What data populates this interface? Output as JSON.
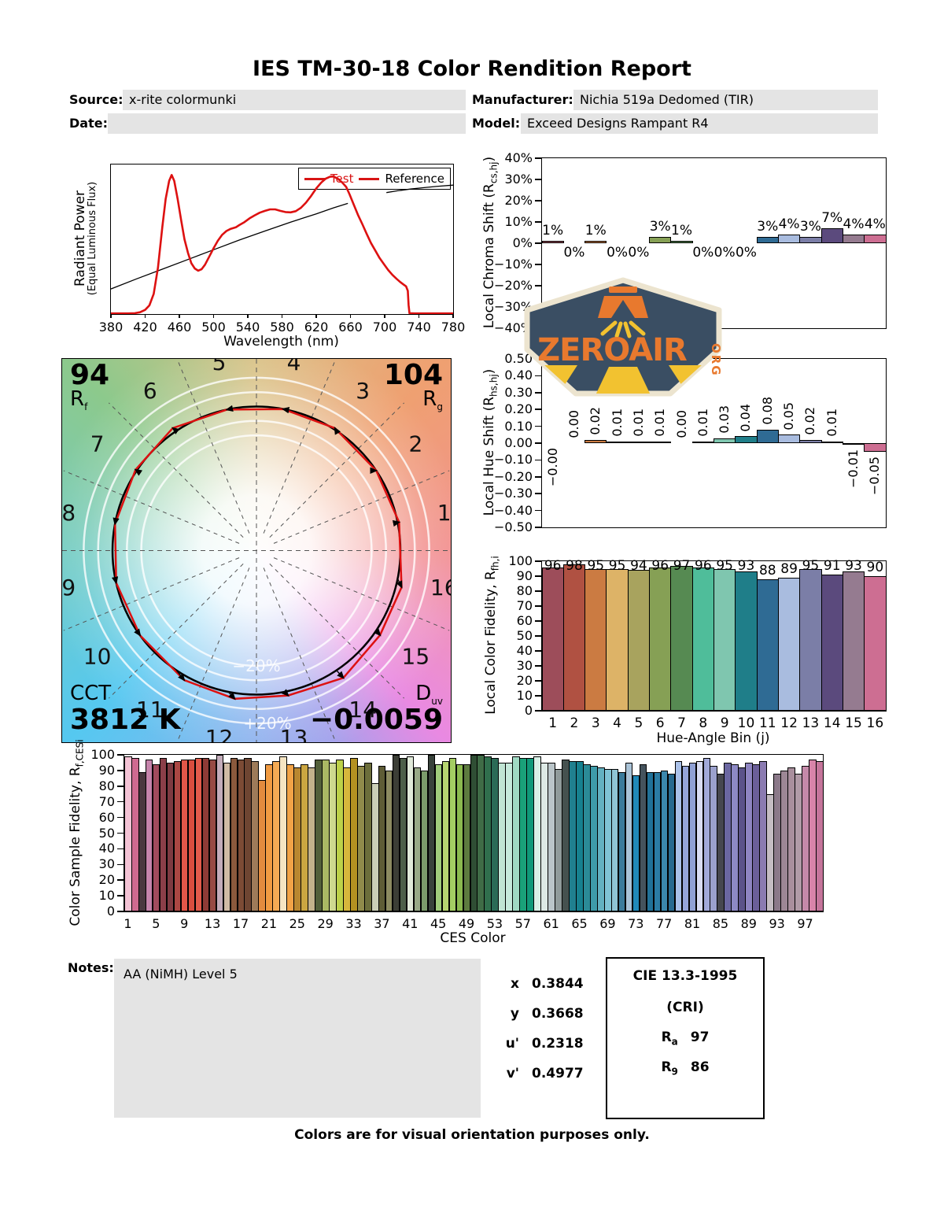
{
  "title": "IES TM-30-18 Color Rendition Report",
  "header": {
    "source_label": "Source:",
    "source_value": "x-rite colormunki",
    "manufacturer_label": "Manufacturer:",
    "manufacturer_value": "Nichia 519a Dedomed (TIR)",
    "date_label": "Date:",
    "date_value": "",
    "model_label": "Model:",
    "model_value": "Exceed Designs Rampant R4"
  },
  "logo": {
    "brand": "ZEROAIR",
    "tld": "ORG",
    "bg": "#3a4e63",
    "accent": "#e8792e",
    "ray": "#f2c230",
    "border": "#ece4cf"
  },
  "colors": {
    "test_red": "#dd1111",
    "reference_black": "#000000",
    "box_gray": "#e4e4e4"
  },
  "chart_data": {
    "bin_colors": [
      "#9d4d5a",
      "#b05142",
      "#cb7b42",
      "#ddb367",
      "#a8a35e",
      "#86a055",
      "#568a52",
      "#4fbd9a",
      "#7fc6af",
      "#1f7e89",
      "#2f6b94",
      "#a9bcdf",
      "#7b7ea7",
      "#5b4a7d",
      "#957b90",
      "#cd6e92"
    ],
    "spd": {
      "type": "line",
      "xlabel": "Wavelength (nm)",
      "ylabel": "Radiant Power",
      "ylabel2": "(Equal Luminous Flux)",
      "x_ticks": [
        "380",
        "420",
        "460",
        "500",
        "540",
        "580",
        "620",
        "660",
        "700",
        "740",
        "780"
      ],
      "xlim": [
        380,
        780
      ],
      "legend": [
        {
          "label": "Test",
          "label_color": "#d81414",
          "line_color": "#d81414"
        },
        {
          "label": "Reference",
          "label_color": "#000000",
          "line_color": "#d81414"
        }
      ],
      "test_series": [
        [
          380,
          0.004
        ],
        [
          400,
          0.004
        ],
        [
          408,
          0.006
        ],
        [
          414,
          0.012
        ],
        [
          420,
          0.028
        ],
        [
          425,
          0.058
        ],
        [
          430,
          0.135
        ],
        [
          435,
          0.31
        ],
        [
          440,
          0.58
        ],
        [
          444,
          0.77
        ],
        [
          448,
          0.89
        ],
        [
          451,
          0.93
        ],
        [
          454,
          0.89
        ],
        [
          458,
          0.77
        ],
        [
          462,
          0.63
        ],
        [
          466,
          0.5
        ],
        [
          470,
          0.41
        ],
        [
          474,
          0.34
        ],
        [
          478,
          0.305
        ],
        [
          482,
          0.29
        ],
        [
          486,
          0.3
        ],
        [
          490,
          0.33
        ],
        [
          495,
          0.385
        ],
        [
          500,
          0.44
        ],
        [
          505,
          0.49
        ],
        [
          510,
          0.53
        ],
        [
          515,
          0.555
        ],
        [
          520,
          0.57
        ],
        [
          526,
          0.58
        ],
        [
          530,
          0.595
        ],
        [
          536,
          0.615
        ],
        [
          542,
          0.64
        ],
        [
          548,
          0.66
        ],
        [
          554,
          0.678
        ],
        [
          560,
          0.69
        ],
        [
          566,
          0.7
        ],
        [
          572,
          0.7
        ],
        [
          578,
          0.69
        ],
        [
          584,
          0.682
        ],
        [
          590,
          0.68
        ],
        [
          596,
          0.688
        ],
        [
          602,
          0.71
        ],
        [
          608,
          0.745
        ],
        [
          614,
          0.79
        ],
        [
          620,
          0.84
        ],
        [
          626,
          0.88
        ],
        [
          631,
          0.905
        ],
        [
          636,
          0.918
        ],
        [
          640,
          0.92
        ],
        [
          645,
          0.906
        ],
        [
          650,
          0.882
        ],
        [
          655,
          0.85
        ],
        [
          659,
          0.8
        ],
        [
          664,
          0.73
        ],
        [
          669,
          0.66
        ],
        [
          674,
          0.6
        ],
        [
          679,
          0.535
        ],
        [
          684,
          0.475
        ],
        [
          689,
          0.425
        ],
        [
          694,
          0.375
        ],
        [
          699,
          0.335
        ],
        [
          704,
          0.295
        ],
        [
          709,
          0.262
        ],
        [
          714,
          0.235
        ],
        [
          718,
          0.215
        ],
        [
          722,
          0.198
        ],
        [
          725,
          0.185
        ],
        [
          727,
          0.155
        ],
        [
          728,
          0.06
        ],
        [
          729,
          0.006
        ],
        [
          735,
          0.004
        ],
        [
          780,
          0.004
        ]
      ],
      "reference_segments": [
        [
          [
            380,
            0.168
          ],
          [
            410,
            0.235
          ],
          [
            440,
            0.3
          ],
          [
            470,
            0.365
          ],
          [
            500,
            0.43
          ],
          [
            530,
            0.495
          ],
          [
            560,
            0.555
          ],
          [
            590,
            0.615
          ],
          [
            620,
            0.67
          ],
          [
            640,
            0.71
          ],
          [
            657,
            0.74
          ]
        ],
        [
          [
            702,
            0.812
          ],
          [
            715,
            0.824
          ],
          [
            730,
            0.836
          ],
          [
            745,
            0.845
          ],
          [
            760,
            0.853
          ],
          [
            780,
            0.862
          ]
        ]
      ]
    },
    "chroma_shift": {
      "type": "bar",
      "ylabel_pre": "Local Chroma Shift (R",
      "ylabel_sub": "cs,hj",
      "ylabel_post": ")",
      "ylim": [
        -40,
        40
      ],
      "y_ticks": [
        "40%",
        "30%",
        "20%",
        "10%",
        "0%",
        "−10%",
        "−20%",
        "−30%",
        "−40%"
      ],
      "categories": [
        1,
        2,
        3,
        4,
        5,
        6,
        7,
        8,
        9,
        10,
        11,
        12,
        13,
        14,
        15,
        16
      ],
      "values": [
        1,
        0,
        1,
        0,
        0,
        3,
        1,
        0,
        0,
        0,
        3,
        4,
        3,
        7,
        4,
        4
      ],
      "labels": [
        "1%",
        "0%",
        "1%",
        "0%",
        "0%",
        "3%",
        "1%",
        "0%",
        "0%",
        "0%",
        "3%",
        "4%",
        "3%",
        "7%",
        "4%",
        "4%"
      ]
    },
    "hue_shift": {
      "type": "bar",
      "ylabel_pre": "Local Hue Shift (R",
      "ylabel_sub": "hs,hj",
      "ylabel_post": ")",
      "ylim": [
        -0.5,
        0.5
      ],
      "y_ticks": [
        "0.50",
        "0.40",
        "0.30",
        "0.20",
        "0.10",
        "0.00",
        "−0.10",
        "−0.20",
        "−0.30",
        "−0.40",
        "−0.50"
      ],
      "categories": [
        1,
        2,
        3,
        4,
        5,
        6,
        7,
        8,
        9,
        10,
        11,
        12,
        13,
        14,
        15,
        16
      ],
      "values": [
        0,
        0,
        0.02,
        0.01,
        0.01,
        0.01,
        0,
        0.01,
        0.03,
        0.04,
        0.08,
        0.05,
        0.02,
        0.01,
        -0.01,
        -0.05
      ],
      "labels": [
        "−0.00",
        "0.00",
        "0.02",
        "0.01",
        "0.01",
        "0.01",
        "0.00",
        "0.01",
        "0.03",
        "0.04",
        "0.08",
        "0.05",
        "0.02",
        "0.01",
        "−0.01",
        "−0.05"
      ]
    },
    "local_fidelity": {
      "type": "bar",
      "ylabel_pre": "Local Color Fidelity, R",
      "ylabel_sub": "fh,i",
      "xlabel": "Hue-Angle Bin (j)",
      "ylim": [
        0,
        100
      ],
      "y_ticks": [
        "100",
        "90",
        "80",
        "70",
        "60",
        "50",
        "40",
        "30",
        "20",
        "10",
        "0"
      ],
      "categories": [
        "1",
        "2",
        "3",
        "4",
        "5",
        "6",
        "7",
        "8",
        "9",
        "10",
        "11",
        "12",
        "13",
        "14",
        "15",
        "16"
      ],
      "values": [
        96,
        98,
        95,
        95,
        94,
        96,
        97,
        96,
        95,
        93,
        88,
        89,
        95,
        91,
        93,
        90
      ]
    },
    "ces_fidelity": {
      "type": "bar",
      "ylabel_pre": "Color Sample Fidelity, R",
      "ylabel_sub": "f,CESi",
      "xlabel": "CES Color",
      "ylim": [
        0,
        100
      ],
      "y_ticks": [
        "100",
        "90",
        "80",
        "70",
        "60",
        "50",
        "40",
        "30",
        "20",
        "10",
        "0"
      ],
      "x_ticks": [
        "1",
        "5",
        "9",
        "13",
        "17",
        "21",
        "25",
        "29",
        "33",
        "37",
        "41",
        "45",
        "49",
        "53",
        "57",
        "61",
        "65",
        "69",
        "73",
        "77",
        "81",
        "85",
        "89",
        "93",
        "97"
      ],
      "values": [
        99,
        98,
        89,
        97,
        94,
        98,
        95,
        96,
        97,
        97,
        98,
        98,
        97,
        100,
        95,
        98,
        97,
        98,
        96,
        84,
        94,
        96,
        99,
        94,
        92,
        94,
        92,
        97,
        97,
        95,
        97,
        92,
        98,
        93,
        95,
        82,
        93,
        90,
        100,
        98,
        99,
        92,
        90,
        100,
        94,
        96,
        98,
        94,
        94,
        100,
        100,
        99,
        98,
        95,
        95,
        99,
        98,
        98,
        99,
        95,
        95,
        91,
        97,
        96,
        96,
        94,
        93,
        92,
        91,
        91,
        89,
        95,
        87,
        94,
        89,
        89,
        90,
        88,
        96,
        93,
        95,
        96,
        98,
        93,
        88,
        95,
        94,
        92,
        95,
        94,
        96,
        75,
        88,
        90,
        92,
        88,
        93,
        97,
        96
      ],
      "colors": [
        "#f3c3d5",
        "#cf6a90",
        "#4a383f",
        "#c685ac",
        "#a14b5d",
        "#8b3f49",
        "#7e3a41",
        "#ab4743",
        "#e25749",
        "#d94e3f",
        "#e25b4b",
        "#8e3b36",
        "#974a44",
        "#c3acba",
        "#d0bba5",
        "#8b593c",
        "#7c4b35",
        "#6e4532",
        "#9e7b59",
        "#e38b3e",
        "#f19b42",
        "#f4aa54",
        "#f6e5c3",
        "#f2a347",
        "#b98730",
        "#cba641",
        "#c3b28b",
        "#525f39",
        "#aab864",
        "#ced98f",
        "#bdd149",
        "#d7b63c",
        "#b49121",
        "#908b4b",
        "#6c6e3b",
        "#caceb7",
        "#5e5c36",
        "#8c8b61",
        "#3c3e36",
        "#4d5f49",
        "#e0e9d9",
        "#98a987",
        "#7b9b6b",
        "#38423b",
        "#9fcc7b",
        "#b6d571",
        "#a4cd63",
        "#8bb94f",
        "#5d7b3f",
        "#2f4e34",
        "#3f6c46",
        "#306f4d",
        "#2b6b56",
        "#c0e4d3",
        "#c6e9db",
        "#a0d9c3",
        "#1aa179",
        "#109979",
        "#d9f0e7",
        "#dde9e5",
        "#bac5c9",
        "#909b9b",
        "#45514f",
        "#20808f",
        "#16818f",
        "#2b8b97",
        "#3e9ba9",
        "#63b1c1",
        "#7fc3d5",
        "#8fc5d5",
        "#3b7b9b",
        "#aac3d7",
        "#2089b9",
        "#45535d",
        "#207198",
        "#2b7ca4",
        "#3b87ac",
        "#286a8f",
        "#aac1e9",
        "#95a5d9",
        "#90a1d5",
        "#d9ddf3",
        "#a1a9d9",
        "#9ba1cd",
        "#46474f",
        "#6b67a1",
        "#8d89c5",
        "#5b5389",
        "#8e85c1",
        "#6b5f99",
        "#8b7bb1",
        "#c5bdc3",
        "#8b7989",
        "#9d8795",
        "#a98f9d",
        "#b19ba7",
        "#c589a9",
        "#d884a9",
        "#c5759b"
      ]
    },
    "cvg": {
      "type": "polar-vector",
      "rf_value": "94",
      "rf_pre": "R",
      "rf_sub": "f",
      "rg_value": "104",
      "rg_pre": "R",
      "rg_sub": "g",
      "cct_label": "CCT",
      "cct_value": "3812 K",
      "duv_pre": "D",
      "duv_sub": "uv",
      "duv_value": "−0.0059",
      "bin_labels": [
        "1",
        "2",
        "3",
        "4",
        "5",
        "6",
        "7",
        "8",
        "9",
        "10",
        "11",
        "12",
        "13",
        "14",
        "15",
        "16"
      ],
      "ring_labels": {
        "inner": "−20%",
        "outer": "+20%"
      },
      "test_radii": [
        1.01,
        1.0,
        1.01,
        1.0,
        1.0,
        1.03,
        1.01,
        1.0,
        1.0,
        1.0,
        1.03,
        1.04,
        1.03,
        1.07,
        1.04,
        1.04
      ],
      "hue_offsets_deg": [
        0,
        0,
        1.1,
        0.6,
        0.6,
        0.6,
        0,
        0.6,
        1.7,
        2.3,
        4.6,
        2.9,
        1.1,
        0.6,
        -0.6,
        -2.9
      ]
    }
  },
  "chromaticity": {
    "rows": [
      {
        "label": "x",
        "value": "0.3844"
      },
      {
        "label": "y",
        "value": "0.3668"
      },
      {
        "label": "u'",
        "value": "0.2318"
      },
      {
        "label": "v'",
        "value": "0.4977"
      }
    ]
  },
  "cie": {
    "title": "CIE 13.3-1995",
    "subtitle": "(CRI)",
    "ra_pre": "R",
    "ra_sub": "a",
    "ra_value": "97",
    "r9_pre": "R",
    "r9_sub": "9",
    "r9_value": "86"
  },
  "notes": {
    "label": "Notes:",
    "value": "AA (NiMH) Level 5"
  },
  "footer": "Colors are for visual orientation purposes only."
}
